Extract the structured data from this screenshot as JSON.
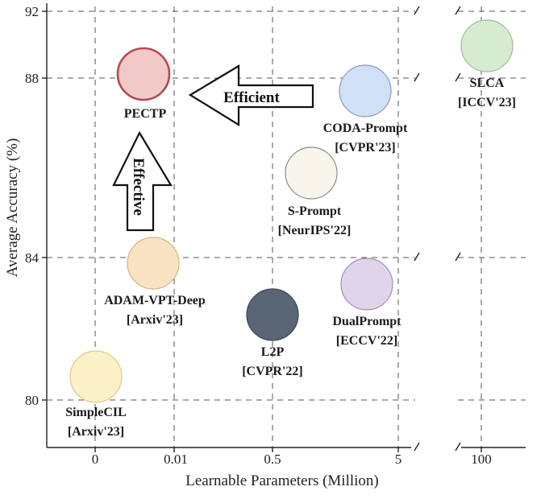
{
  "chart_data": {
    "type": "scatter",
    "title": "",
    "xlabel": "Learnable Parameters (Million)",
    "ylabel": "Average Accuracy (%)",
    "x_ticks": [
      "0",
      "0.01",
      "0.5",
      "5",
      "100"
    ],
    "y_ticks": [
      "80",
      "84",
      "88",
      "92"
    ],
    "ylim": [
      79,
      93
    ],
    "x_scale": "broken, nonlinear (0 | 0.01 | 0.5 | 5 // 100)",
    "grid": true,
    "points": [
      {
        "name": "PECTP",
        "venue": "",
        "x": 0.006,
        "y": 88.1,
        "color": "#f2c9c9",
        "edge": "#b5494d"
      },
      {
        "name": "CODA-Prompt",
        "venue": "[CVPR'23]",
        "x": 3.9,
        "y": 87.7,
        "color": "#cfe0f7",
        "edge": "#8a9bb4"
      },
      {
        "name": "SLCA",
        "venue": "[ICCV'23]",
        "x": 100,
        "y": 90.8,
        "color": "#d6ecd0",
        "edge": "#9cba94"
      },
      {
        "name": "S-Prompt",
        "venue": "[NeurIPS'22]",
        "x": 0.9,
        "y": 86.0,
        "color": "#f8f6ec",
        "edge": "#8c8c84"
      },
      {
        "name": "ADAM-VPT-Deep",
        "venue": "[Arxiv'23]",
        "x": 0.008,
        "y": 83.9,
        "color": "#f9e3c3",
        "edge": "#d7b47d"
      },
      {
        "name": "DualPrompt",
        "venue": "[ECCV'22]",
        "x": 3.8,
        "y": 83.3,
        "color": "#e0d4ea",
        "edge": "#9e8fae"
      },
      {
        "name": "L2P",
        "venue": "[CVPR'22]",
        "x": 0.5,
        "y": 82.4,
        "color": "#5a6575",
        "edge": "#3d4654"
      },
      {
        "name": "SimpleCIL",
        "venue": "[Arxiv'23]",
        "x": 0,
        "y": 80.6,
        "color": "#fbf0c8",
        "edge": "#dcc98c"
      }
    ],
    "annotations": [
      {
        "text": "Efficient",
        "direction": "left"
      },
      {
        "text": "Effective",
        "direction": "up"
      }
    ]
  }
}
